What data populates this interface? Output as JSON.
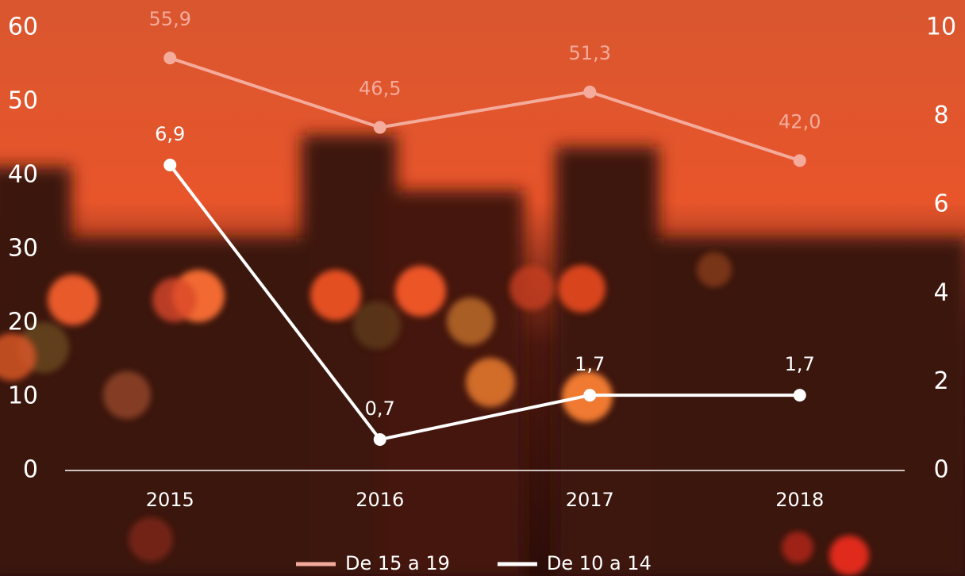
{
  "chart_data": {
    "type": "line",
    "categories": [
      "2015",
      "2016",
      "2017",
      "2018"
    ],
    "series": [
      {
        "name": "De 15 a 19",
        "color": "#f4ab9c",
        "values": [
          55.9,
          46.5,
          51.3,
          42.0
        ],
        "value_labels": [
          "55,9",
          "46,5",
          "51,3",
          "42,0"
        ]
      },
      {
        "name": "De 10 a 14",
        "color": "#ffffff",
        "axis": "y2",
        "values": [
          6.9,
          0.7,
          1.7,
          1.7
        ],
        "value_labels": [
          "6,9",
          "0,7",
          "1,7",
          "1,7"
        ]
      }
    ],
    "ylim": [
      0,
      60
    ],
    "yticks": [
      0,
      10,
      20,
      30,
      40,
      50,
      60
    ],
    "y2lim": [
      0,
      10
    ],
    "y2ticks": [
      0,
      2,
      4,
      6,
      8,
      10
    ],
    "grid": false,
    "legend": "bottom"
  }
}
